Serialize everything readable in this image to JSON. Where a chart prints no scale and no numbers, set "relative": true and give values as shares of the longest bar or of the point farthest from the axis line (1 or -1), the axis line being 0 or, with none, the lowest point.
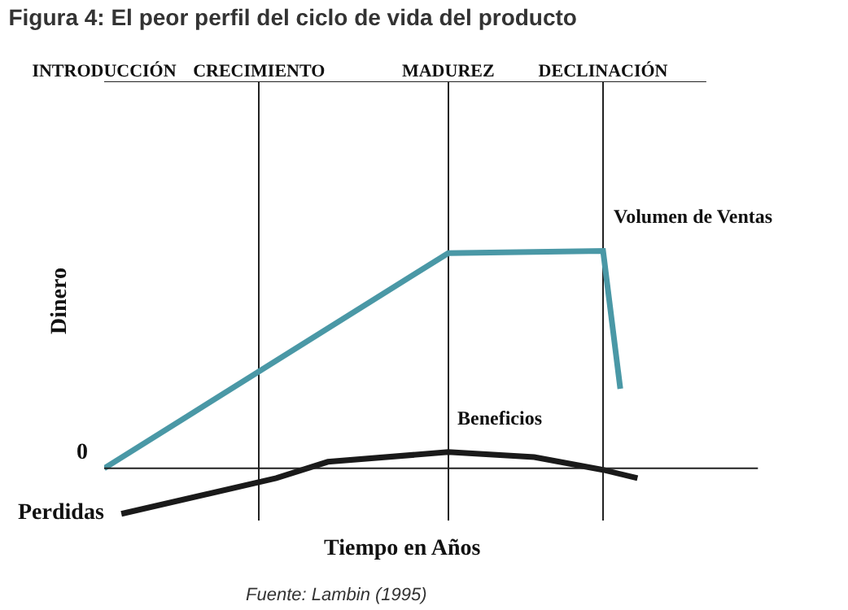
{
  "chart_data": {
    "type": "line",
    "relative": true,
    "title": "Figura 4: El peor perfil del ciclo de vida del producto",
    "xlabel": "Tiempo en Años",
    "ylabel": "Dinero",
    "legend": false,
    "marker": "none",
    "line_style": "solid",
    "grid": "x",
    "categories": [
      "INTRODUCCIÓN",
      null,
      null,
      null,
      null,
      null,
      null,
      null,
      null,
      "CRECIMIENTO",
      null,
      null,
      null,
      null,
      null,
      null,
      null,
      null,
      null,
      null,
      "MADUREZ",
      null,
      null,
      null,
      null,
      null,
      null,
      null,
      null,
      "DECLINACIÓN",
      null,
      null,
      null,
      null,
      null,
      null
    ],
    "series": [
      {
        "name": "Volumen de Ventas",
        "color": "#4a98a6",
        "values": [
          0,
          null,
          null,
          null,
          null,
          null,
          null,
          null,
          null,
          null,
          null,
          null,
          null,
          null,
          null,
          null,
          null,
          null,
          null,
          null,
          0.99,
          null,
          null,
          null,
          null,
          null,
          null,
          null,
          null,
          1,
          0.366,
          null,
          null,
          null,
          null,
          null
        ]
      },
      {
        "name": "Beneficios",
        "color": "#1a1a1a",
        "values": [
          null,
          -0.209,
          null,
          null,
          null,
          null,
          null,
          null,
          null,
          null,
          -0.045,
          null,
          null,
          0.03,
          null,
          null,
          null,
          null,
          null,
          null,
          0.075,
          null,
          null,
          null,
          null,
          0.052,
          null,
          null,
          null,
          -0.007,
          null,
          -0.045,
          null,
          null,
          null,
          null
        ]
      }
    ],
    "annotations": [
      "0",
      "Perdidas",
      "Fuente: Lambin (1995)"
    ]
  }
}
